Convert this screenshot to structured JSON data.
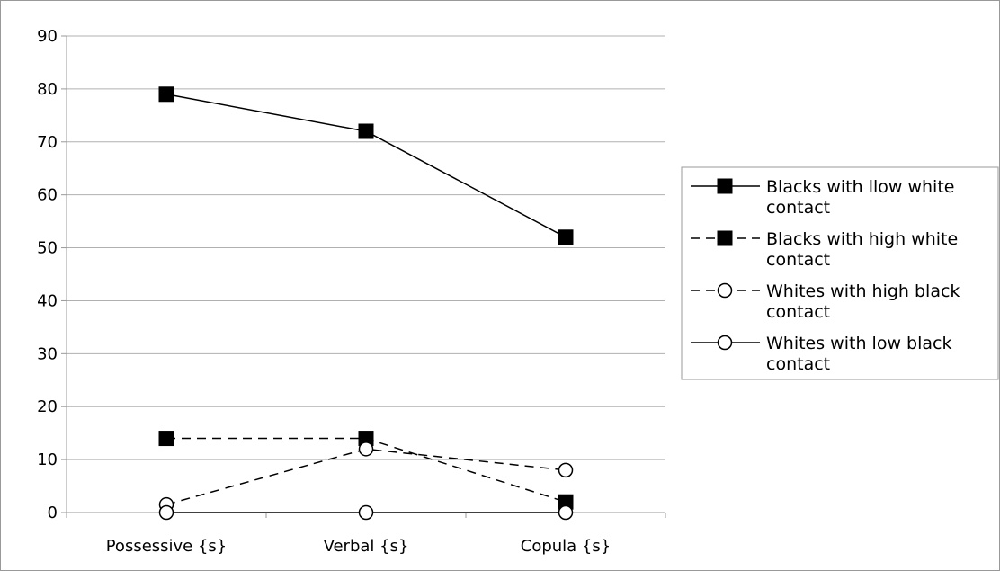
{
  "chart_data": {
    "type": "line",
    "categories": [
      "Possessive {s}",
      "Verbal {s}",
      "Copula {s}"
    ],
    "ylim": [
      0,
      90
    ],
    "yticks": [
      "0",
      "10",
      "20",
      "30",
      "40",
      "50",
      "60",
      "70",
      "80",
      "90"
    ],
    "grid": "horizontal",
    "legend_position": "right",
    "series": [
      {
        "name": "Blacks with llow white contact",
        "name_lines": [
          "Blacks with llow white",
          "contact"
        ],
        "values": [
          79,
          72,
          52
        ],
        "line_style": "solid",
        "marker": "filled-square"
      },
      {
        "name": "Blacks with high white contact",
        "name_lines": [
          "Blacks with high white",
          "contact"
        ],
        "values": [
          14,
          14,
          2
        ],
        "line_style": "dashed",
        "marker": "filled-square"
      },
      {
        "name": "Whites with high black contact",
        "name_lines": [
          "Whites with high black",
          "contact"
        ],
        "values": [
          1.5,
          12,
          8
        ],
        "line_style": "dashed",
        "marker": "open-circle"
      },
      {
        "name": "Whites with low black contact",
        "name_lines": [
          "Whites with low black",
          "contact"
        ],
        "values": [
          0,
          0,
          0
        ],
        "line_style": "solid",
        "marker": "open-circle"
      }
    ],
    "colors": {
      "line": "#000000",
      "grid": "#b0b0b0",
      "frame": "#999999",
      "marker_fill_open": "#ffffff"
    }
  }
}
